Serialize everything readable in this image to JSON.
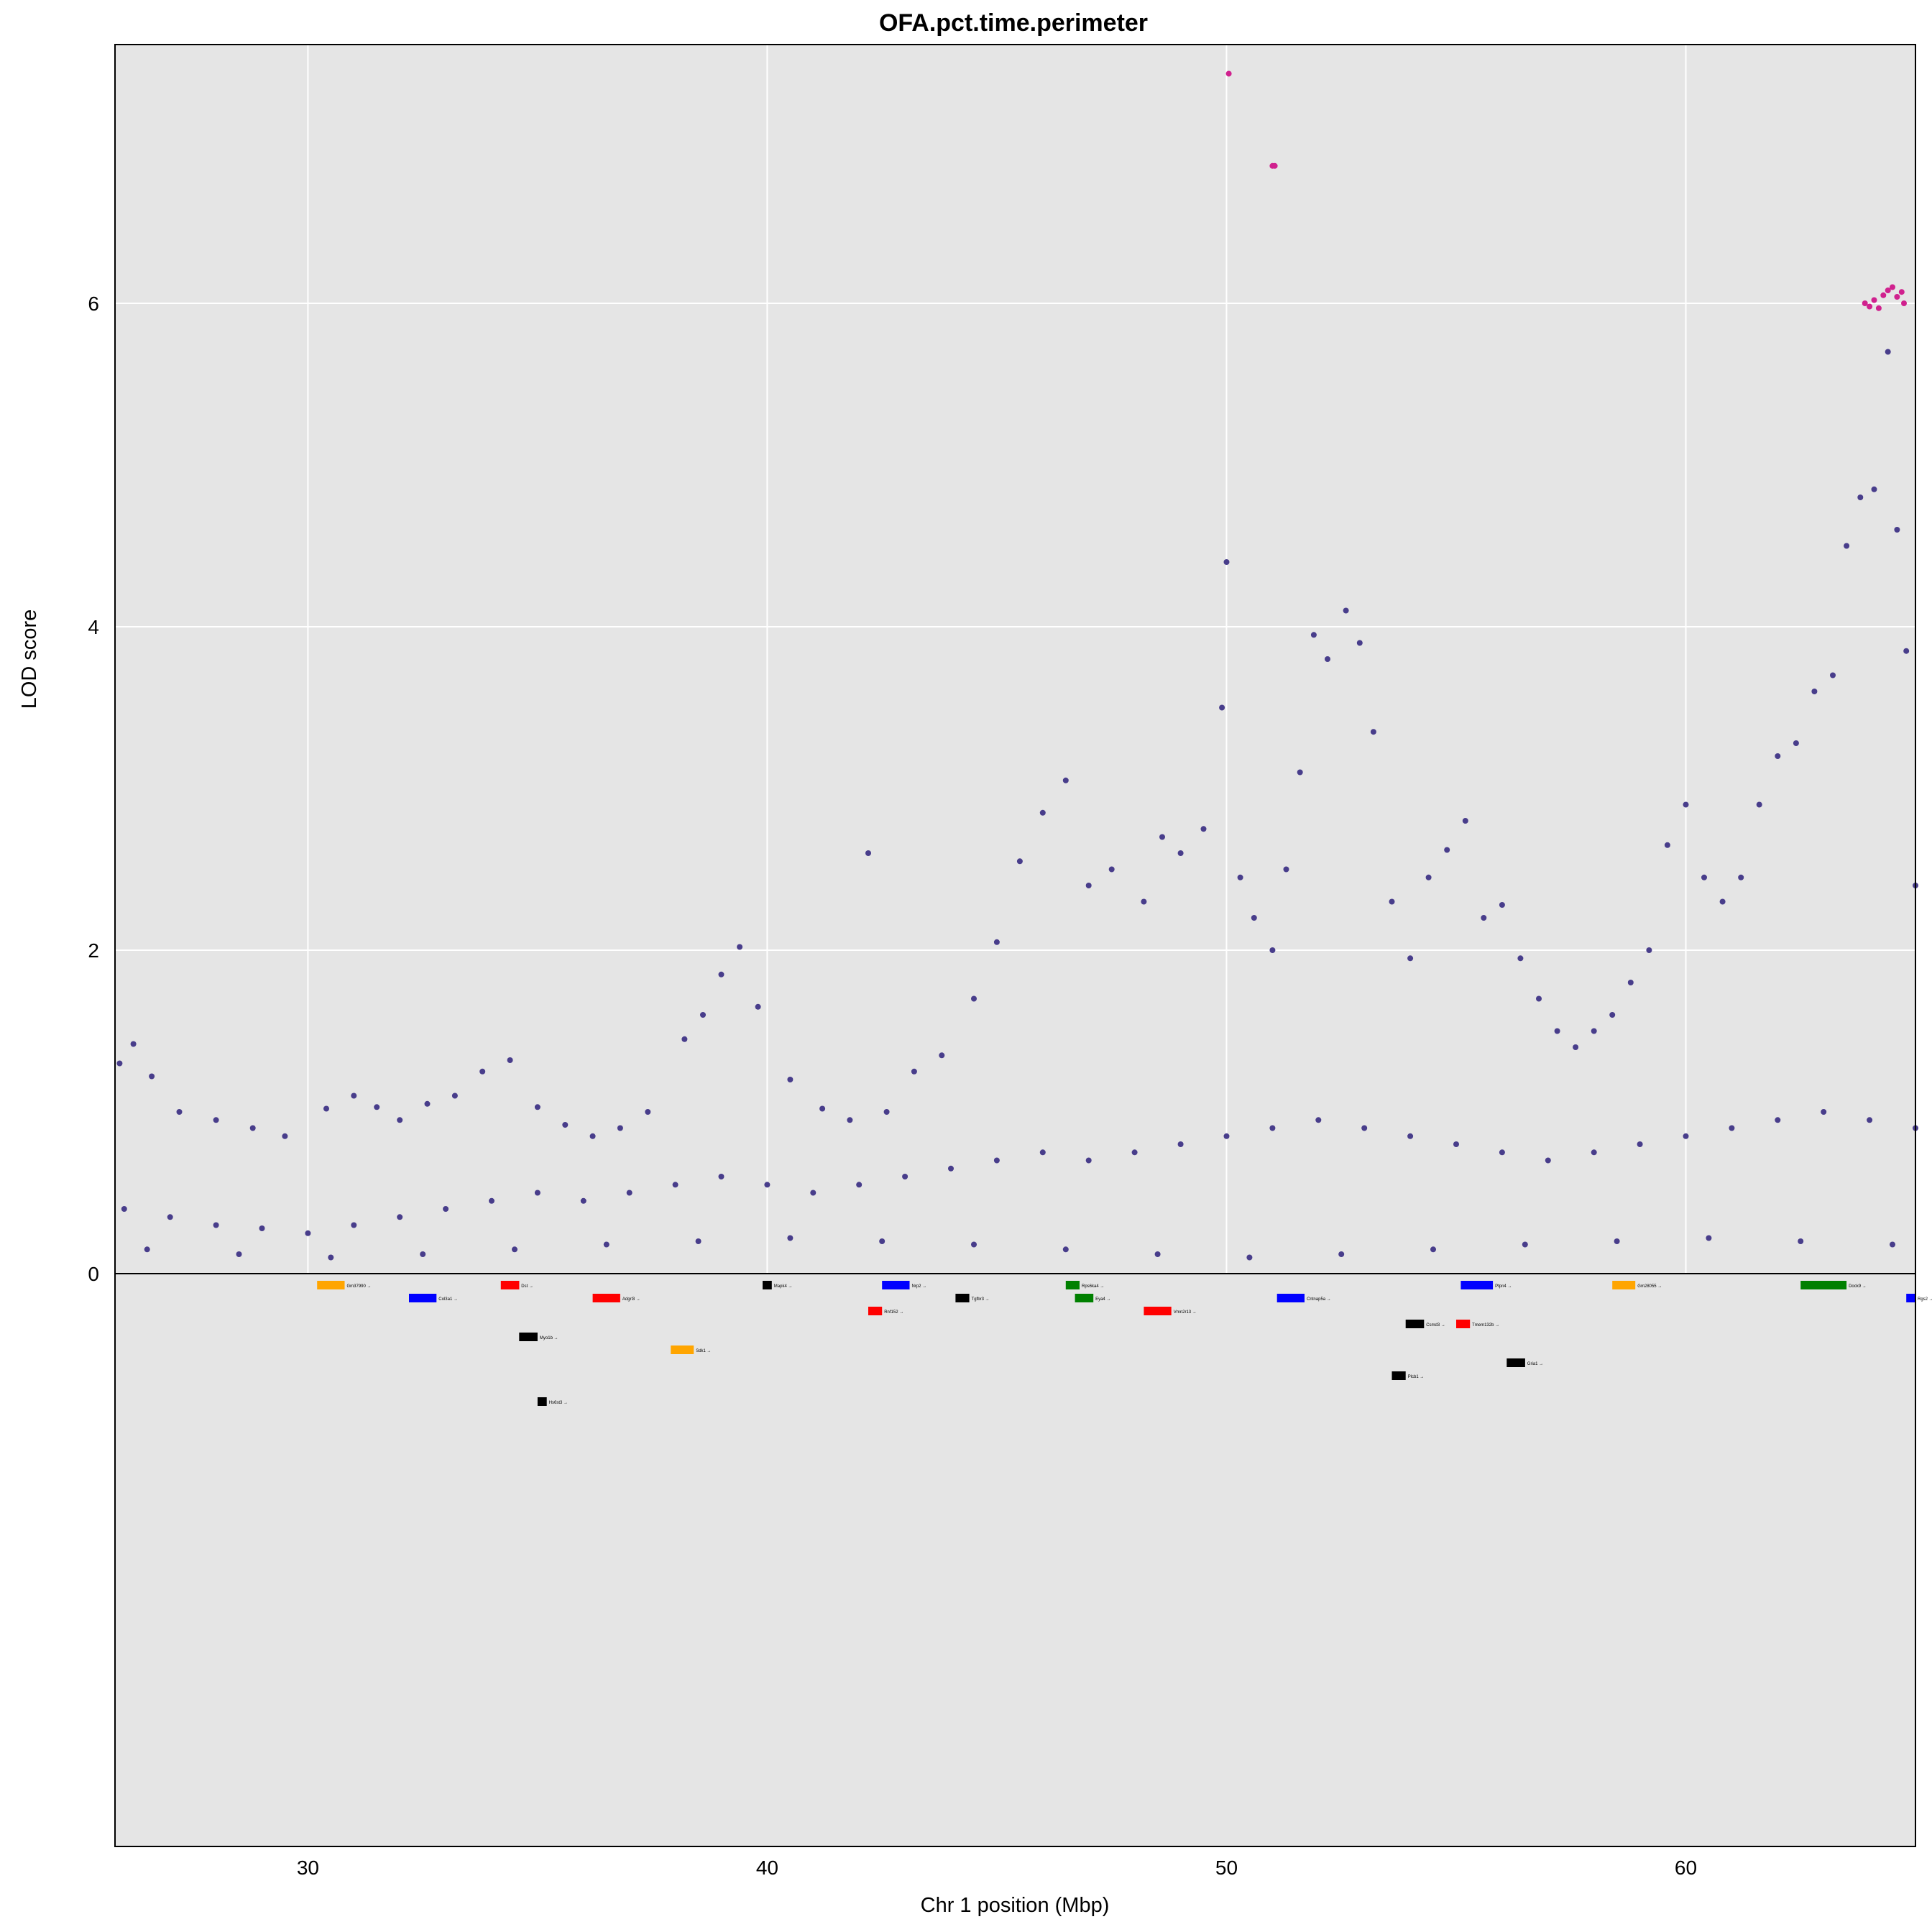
{
  "chart_data": {
    "type": "scatter",
    "title": "OFA.pct.time.perimeter",
    "xlabel": "Chr 1 position (Mbp)",
    "ylabel": "LOD score",
    "xlim": [
      25.8,
      65.0
    ],
    "ylim": [
      0,
      7.6
    ],
    "x_ticks": [
      30,
      40,
      50,
      60
    ],
    "y_ticks": [
      0,
      2,
      4,
      6
    ],
    "grid": true,
    "background": "#e5e5e5",
    "point_color": "#483d8b",
    "highlight_color": "#d0218e",
    "series": [
      {
        "points": [
          [
            25.9,
            1.3
          ],
          [
            26.2,
            1.42
          ],
          [
            26.6,
            1.22
          ],
          [
            27.2,
            1.0
          ],
          [
            28.0,
            0.95
          ],
          [
            28.8,
            0.9
          ],
          [
            29.5,
            0.85
          ],
          [
            30.4,
            1.02
          ],
          [
            31.0,
            1.1
          ],
          [
            31.5,
            1.03
          ],
          [
            32.0,
            0.95
          ],
          [
            32.6,
            1.05
          ],
          [
            33.2,
            1.1
          ],
          [
            33.8,
            1.25
          ],
          [
            34.4,
            1.32
          ],
          [
            35.0,
            1.03
          ],
          [
            35.6,
            0.92
          ],
          [
            36.2,
            0.85
          ],
          [
            36.8,
            0.9
          ],
          [
            37.4,
            1.0
          ],
          [
            38.2,
            1.45
          ],
          [
            38.6,
            1.6
          ],
          [
            39.0,
            1.85
          ],
          [
            39.4,
            2.02
          ],
          [
            39.8,
            1.65
          ],
          [
            40.5,
            1.2
          ],
          [
            41.2,
            1.02
          ],
          [
            41.8,
            0.95
          ],
          [
            42.2,
            2.6
          ],
          [
            42.6,
            1.0
          ],
          [
            43.2,
            1.25
          ],
          [
            43.8,
            1.35
          ],
          [
            44.5,
            1.7
          ],
          [
            45.0,
            2.05
          ],
          [
            45.5,
            2.55
          ],
          [
            46.0,
            2.85
          ],
          [
            46.5,
            3.05
          ],
          [
            47.0,
            2.4
          ],
          [
            47.5,
            2.5
          ],
          [
            48.2,
            2.3
          ],
          [
            48.6,
            2.7
          ],
          [
            49.0,
            2.6
          ],
          [
            49.5,
            2.75
          ],
          [
            49.9,
            3.5
          ],
          [
            50.0,
            4.4
          ],
          [
            50.3,
            2.45
          ],
          [
            50.6,
            2.2
          ],
          [
            51.0,
            2.0
          ],
          [
            51.3,
            2.5
          ],
          [
            51.6,
            3.1
          ],
          [
            51.9,
            3.95
          ],
          [
            52.2,
            3.8
          ],
          [
            52.6,
            4.1
          ],
          [
            52.9,
            3.9
          ],
          [
            53.2,
            3.35
          ],
          [
            53.6,
            2.3
          ],
          [
            54.0,
            1.95
          ],
          [
            54.4,
            2.45
          ],
          [
            54.8,
            2.62
          ],
          [
            55.2,
            2.8
          ],
          [
            55.6,
            2.2
          ],
          [
            56.0,
            2.28
          ],
          [
            56.4,
            1.95
          ],
          [
            56.8,
            1.7
          ],
          [
            57.2,
            1.5
          ],
          [
            57.6,
            1.4
          ],
          [
            58.0,
            1.5
          ],
          [
            58.4,
            1.6
          ],
          [
            58.8,
            1.8
          ],
          [
            59.2,
            2.0
          ],
          [
            59.6,
            2.65
          ],
          [
            60.0,
            2.9
          ],
          [
            60.4,
            2.45
          ],
          [
            60.8,
            2.3
          ],
          [
            61.2,
            2.45
          ],
          [
            61.6,
            2.9
          ],
          [
            62.0,
            3.2
          ],
          [
            62.4,
            3.28
          ],
          [
            62.8,
            3.6
          ],
          [
            63.2,
            3.7
          ],
          [
            63.5,
            4.5
          ],
          [
            63.8,
            4.8
          ],
          [
            64.1,
            4.85
          ],
          [
            64.4,
            5.7
          ],
          [
            64.6,
            4.6
          ],
          [
            64.8,
            3.85
          ],
          [
            65.0,
            2.4
          ],
          [
            26.0,
            0.4
          ],
          [
            27.0,
            0.35
          ],
          [
            28.0,
            0.3
          ],
          [
            29.0,
            0.28
          ],
          [
            30.0,
            0.25
          ],
          [
            31.0,
            0.3
          ],
          [
            32.0,
            0.35
          ],
          [
            33.0,
            0.4
          ],
          [
            34.0,
            0.45
          ],
          [
            35.0,
            0.5
          ],
          [
            36.0,
            0.45
          ],
          [
            37.0,
            0.5
          ],
          [
            38.0,
            0.55
          ],
          [
            39.0,
            0.6
          ],
          [
            40.0,
            0.55
          ],
          [
            41.0,
            0.5
          ],
          [
            42.0,
            0.55
          ],
          [
            43.0,
            0.6
          ],
          [
            44.0,
            0.65
          ],
          [
            45.0,
            0.7
          ],
          [
            46.0,
            0.75
          ],
          [
            47.0,
            0.7
          ],
          [
            48.0,
            0.75
          ],
          [
            49.0,
            0.8
          ],
          [
            50.0,
            0.85
          ],
          [
            51.0,
            0.9
          ],
          [
            52.0,
            0.95
          ],
          [
            53.0,
            0.9
          ],
          [
            54.0,
            0.85
          ],
          [
            55.0,
            0.8
          ],
          [
            56.0,
            0.75
          ],
          [
            57.0,
            0.7
          ],
          [
            58.0,
            0.75
          ],
          [
            59.0,
            0.8
          ],
          [
            60.0,
            0.85
          ],
          [
            61.0,
            0.9
          ],
          [
            62.0,
            0.95
          ],
          [
            63.0,
            1.0
          ],
          [
            64.0,
            0.95
          ],
          [
            65.0,
            0.9
          ],
          [
            26.5,
            0.15
          ],
          [
            28.5,
            0.12
          ],
          [
            30.5,
            0.1
          ],
          [
            32.5,
            0.12
          ],
          [
            34.5,
            0.15
          ],
          [
            36.5,
            0.18
          ],
          [
            38.5,
            0.2
          ],
          [
            40.5,
            0.22
          ],
          [
            42.5,
            0.2
          ],
          [
            44.5,
            0.18
          ],
          [
            46.5,
            0.15
          ],
          [
            48.5,
            0.12
          ],
          [
            50.5,
            0.1
          ],
          [
            52.5,
            0.12
          ],
          [
            54.5,
            0.15
          ],
          [
            56.5,
            0.18
          ],
          [
            58.5,
            0.2
          ],
          [
            60.5,
            0.22
          ],
          [
            62.5,
            0.2
          ],
          [
            64.5,
            0.18
          ]
        ]
      },
      {
        "name": "top markers",
        "highlight": true,
        "points": [
          [
            50.05,
            7.42
          ],
          [
            51.0,
            6.85
          ],
          [
            51.05,
            6.85
          ],
          [
            63.9,
            6.0
          ],
          [
            64.0,
            5.98
          ],
          [
            64.1,
            6.02
          ],
          [
            64.2,
            5.97
          ],
          [
            64.3,
            6.05
          ],
          [
            64.4,
            6.08
          ],
          [
            64.5,
            6.1
          ],
          [
            64.6,
            6.04
          ],
          [
            64.7,
            6.07
          ],
          [
            64.75,
            6.0
          ]
        ]
      }
    ],
    "genes": [
      {
        "label": "Gm37990",
        "start": 30.2,
        "end": 30.8,
        "row": 0,
        "color": "#ffa500"
      },
      {
        "label": "Dst",
        "start": 34.2,
        "end": 34.6,
        "row": 0,
        "color": "#ff0000"
      },
      {
        "label": "Mapk4",
        "start": 39.9,
        "end": 40.1,
        "row": 0,
        "color": "#000000"
      },
      {
        "label": "Nrp2",
        "start": 42.5,
        "end": 43.1,
        "row": 0,
        "color": "#0000ff"
      },
      {
        "label": "Rps6ka4",
        "start": 46.5,
        "end": 46.8,
        "row": 0,
        "color": "#008000"
      },
      {
        "label": "Ptpn4",
        "start": 55.1,
        "end": 55.8,
        "row": 0,
        "color": "#0000ff"
      },
      {
        "label": "Gm28055",
        "start": 58.4,
        "end": 58.9,
        "row": 0,
        "color": "#ffa500"
      },
      {
        "label": "Dock9",
        "start": 62.5,
        "end": 63.5,
        "row": 0,
        "color": "#008000"
      },
      {
        "label": "Col3a1",
        "start": 32.2,
        "end": 32.8,
        "row": 1,
        "color": "#0000ff"
      },
      {
        "label": "Adgrl3",
        "start": 36.2,
        "end": 36.8,
        "row": 1,
        "color": "#ff0000"
      },
      {
        "label": "Tgfbr3",
        "start": 44.1,
        "end": 44.4,
        "row": 1,
        "color": "#000000"
      },
      {
        "label": "Eya4",
        "start": 46.7,
        "end": 47.1,
        "row": 1,
        "color": "#008000"
      },
      {
        "label": "Cntnap5a",
        "start": 51.1,
        "end": 51.7,
        "row": 1,
        "color": "#0000ff"
      },
      {
        "label": "Rgs2",
        "start": 64.8,
        "end": 65.0,
        "row": 1,
        "color": "#0000ff"
      },
      {
        "label": "Rnf152",
        "start": 42.2,
        "end": 42.5,
        "row": 2,
        "color": "#ff0000"
      },
      {
        "label": "Vmn2r13",
        "start": 48.2,
        "end": 48.8,
        "row": 2,
        "color": "#ff0000"
      },
      {
        "label": "Csmd3",
        "start": 53.9,
        "end": 54.3,
        "row": 3,
        "color": "#000000"
      },
      {
        "label": "Tmem132b",
        "start": 55.0,
        "end": 55.3,
        "row": 3,
        "color": "#ff0000"
      },
      {
        "label": "Myo1b",
        "start": 34.6,
        "end": 35.0,
        "row": 4,
        "color": "#000000"
      },
      {
        "label": "Sdk1",
        "start": 37.9,
        "end": 38.4,
        "row": 5,
        "color": "#ffa500"
      },
      {
        "label": "Gria1",
        "start": 56.1,
        "end": 56.5,
        "row": 6,
        "color": "#000000"
      },
      {
        "label": "Plcb1",
        "start": 53.6,
        "end": 53.9,
        "row": 7,
        "color": "#000000"
      },
      {
        "label": "Hs6st3",
        "start": 35.0,
        "end": 35.2,
        "row": 9,
        "color": "#000000"
      }
    ]
  }
}
